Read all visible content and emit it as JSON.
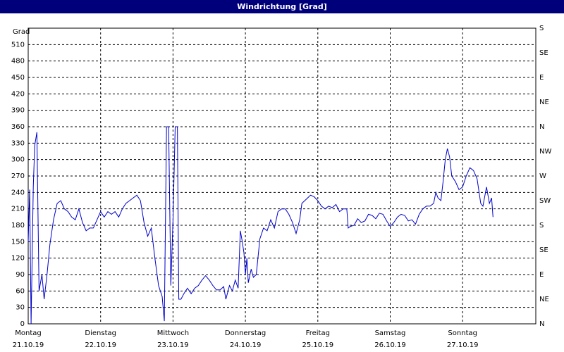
{
  "window": {
    "title": "Windrichtung [Grad]"
  },
  "chart_data": {
    "type": "line",
    "title": "Windrichtung [Grad]",
    "ylabel": "Grad",
    "ylim": [
      0,
      540
    ],
    "grid": true,
    "y_ticks_left": [
      "0",
      "30",
      "60",
      "90",
      "120",
      "150",
      "180",
      "210",
      "240",
      "270",
      "300",
      "330",
      "360",
      "390",
      "420",
      "450",
      "480",
      "510"
    ],
    "y_ticks_right": [
      "N",
      "NE",
      "E",
      "SE",
      "S",
      "SW",
      "W",
      "NW",
      "N",
      "NE",
      "E",
      "SE",
      "S"
    ],
    "days": [
      {
        "name": "Montag",
        "date": "21.10.19"
      },
      {
        "name": "Dienstag",
        "date": "22.10.19"
      },
      {
        "name": "Mittwoch",
        "date": "23.10.19"
      },
      {
        "name": "Donnerstag",
        "date": "24.10.19"
      },
      {
        "name": "Freitag",
        "date": "25.10.19"
      },
      {
        "name": "Samstag",
        "date": "26.10.19"
      },
      {
        "name": "Sonntag",
        "date": "27.10.19"
      }
    ],
    "series": [
      {
        "color": "#0000cc",
        "points": [
          [
            0.0,
            150
          ],
          [
            0.02,
            245
          ],
          [
            0.04,
            0
          ],
          [
            0.07,
            250
          ],
          [
            0.09,
            325
          ],
          [
            0.12,
            350
          ],
          [
            0.15,
            60
          ],
          [
            0.19,
            90
          ],
          [
            0.22,
            45
          ],
          [
            0.26,
            90
          ],
          [
            0.3,
            145
          ],
          [
            0.35,
            190
          ],
          [
            0.4,
            220
          ],
          [
            0.45,
            225
          ],
          [
            0.5,
            210
          ],
          [
            0.55,
            205
          ],
          [
            0.6,
            195
          ],
          [
            0.65,
            190
          ],
          [
            0.7,
            210
          ],
          [
            0.75,
            185
          ],
          [
            0.8,
            170
          ],
          [
            0.85,
            175
          ],
          [
            0.9,
            175
          ],
          [
            0.95,
            190
          ],
          [
            1.0,
            205
          ],
          [
            1.05,
            195
          ],
          [
            1.1,
            205
          ],
          [
            1.15,
            200
          ],
          [
            1.2,
            205
          ],
          [
            1.25,
            195
          ],
          [
            1.3,
            210
          ],
          [
            1.35,
            220
          ],
          [
            1.4,
            225
          ],
          [
            1.45,
            230
          ],
          [
            1.5,
            235
          ],
          [
            1.55,
            225
          ],
          [
            1.6,
            185
          ],
          [
            1.65,
            160
          ],
          [
            1.7,
            175
          ],
          [
            1.75,
            120
          ],
          [
            1.8,
            70
          ],
          [
            1.85,
            50
          ],
          [
            1.88,
            5
          ],
          [
            1.91,
            360
          ],
          [
            1.94,
            360
          ],
          [
            1.97,
            70
          ],
          [
            2.0,
            190
          ],
          [
            2.03,
            360
          ],
          [
            2.06,
            360
          ],
          [
            2.08,
            45
          ],
          [
            2.11,
            45
          ],
          [
            2.15,
            55
          ],
          [
            2.2,
            65
          ],
          [
            2.25,
            55
          ],
          [
            2.3,
            65
          ],
          [
            2.35,
            70
          ],
          [
            2.4,
            80
          ],
          [
            2.45,
            88
          ],
          [
            2.5,
            80
          ],
          [
            2.55,
            70
          ],
          [
            2.6,
            62
          ],
          [
            2.65,
            62
          ],
          [
            2.7,
            68
          ],
          [
            2.73,
            45
          ],
          [
            2.78,
            70
          ],
          [
            2.82,
            60
          ],
          [
            2.86,
            80
          ],
          [
            2.9,
            65
          ],
          [
            2.93,
            170
          ],
          [
            2.95,
            155
          ],
          [
            2.98,
            130
          ],
          [
            3.0,
            90
          ],
          [
            3.02,
            120
          ],
          [
            3.04,
            75
          ],
          [
            3.08,
            100
          ],
          [
            3.11,
            85
          ],
          [
            3.15,
            90
          ],
          [
            3.2,
            155
          ],
          [
            3.25,
            175
          ],
          [
            3.3,
            170
          ],
          [
            3.35,
            190
          ],
          [
            3.4,
            175
          ],
          [
            3.45,
            205
          ],
          [
            3.5,
            210
          ],
          [
            3.55,
            210
          ],
          [
            3.6,
            200
          ],
          [
            3.65,
            185
          ],
          [
            3.7,
            165
          ],
          [
            3.75,
            190
          ],
          [
            3.78,
            220
          ],
          [
            3.82,
            225
          ],
          [
            3.86,
            230
          ],
          [
            3.9,
            235
          ],
          [
            3.95,
            232
          ],
          [
            4.0,
            225
          ],
          [
            4.05,
            215
          ],
          [
            4.1,
            210
          ],
          [
            4.15,
            215
          ],
          [
            4.2,
            212
          ],
          [
            4.25,
            218
          ],
          [
            4.3,
            205
          ],
          [
            4.35,
            210
          ],
          [
            4.4,
            210
          ],
          [
            4.42,
            175
          ],
          [
            4.45,
            178
          ],
          [
            4.5,
            180
          ],
          [
            4.55,
            192
          ],
          [
            4.6,
            185
          ],
          [
            4.65,
            188
          ],
          [
            4.7,
            200
          ],
          [
            4.75,
            198
          ],
          [
            4.8,
            192
          ],
          [
            4.85,
            202
          ],
          [
            4.9,
            200
          ],
          [
            4.95,
            188
          ],
          [
            5.0,
            178
          ],
          [
            5.05,
            185
          ],
          [
            5.1,
            195
          ],
          [
            5.15,
            200
          ],
          [
            5.2,
            198
          ],
          [
            5.25,
            188
          ],
          [
            5.3,
            190
          ],
          [
            5.35,
            182
          ],
          [
            5.4,
            200
          ],
          [
            5.45,
            210
          ],
          [
            5.5,
            215
          ],
          [
            5.55,
            215
          ],
          [
            5.6,
            220
          ],
          [
            5.63,
            240
          ],
          [
            5.66,
            230
          ],
          [
            5.7,
            225
          ],
          [
            5.73,
            260
          ],
          [
            5.76,
            300
          ],
          [
            5.79,
            320
          ],
          [
            5.82,
            305
          ],
          [
            5.85,
            270
          ],
          [
            5.9,
            260
          ],
          [
            5.95,
            245
          ],
          [
            6.0,
            250
          ],
          [
            6.05,
            270
          ],
          [
            6.1,
            285
          ],
          [
            6.15,
            280
          ],
          [
            6.2,
            265
          ],
          [
            6.25,
            220
          ],
          [
            6.28,
            215
          ],
          [
            6.33,
            250
          ],
          [
            6.37,
            220
          ],
          [
            6.4,
            230
          ],
          [
            6.42,
            195
          ]
        ]
      }
    ]
  }
}
